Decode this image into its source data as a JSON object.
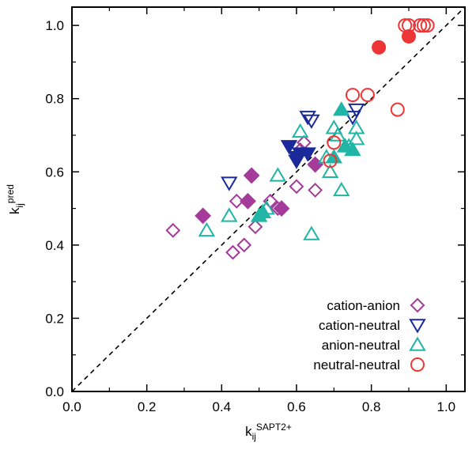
{
  "chart_data": {
    "type": "scatter",
    "xlabel": {
      "main": "k",
      "sub": "ij",
      "sup": "SAPT2+"
    },
    "ylabel": {
      "main": "k",
      "sub": "ij",
      "sup": "pred"
    },
    "xlim": [
      0,
      1.05
    ],
    "ylim": [
      0,
      1.05
    ],
    "xticks": [
      "0.0",
      "0.2",
      "0.4",
      "0.6",
      "0.8",
      "1.0"
    ],
    "yticks": [
      "0.0",
      "0.2",
      "0.4",
      "0.6",
      "0.8",
      "1.0"
    ],
    "grid": false,
    "legend_position": "bottom-right",
    "reference_line": {
      "style": "dashed",
      "from": [
        0,
        0
      ],
      "to": [
        1.05,
        1.05
      ],
      "color": "#000000"
    },
    "series": [
      {
        "name": "cation-anion",
        "color": "#a43a9a",
        "marker": "diamond",
        "points": [
          [
            0.27,
            0.44
          ],
          [
            0.43,
            0.38
          ],
          [
            0.46,
            0.4
          ],
          [
            0.44,
            0.52
          ],
          [
            0.49,
            0.45
          ],
          [
            0.53,
            0.52
          ],
          [
            0.55,
            0.5
          ],
          [
            0.6,
            0.56
          ],
          [
            0.65,
            0.55
          ],
          [
            0.61,
            0.66
          ],
          [
            0.62,
            0.68
          ]
        ]
      },
      {
        "name": "cation-anion (filled)",
        "color": "#a43a9a",
        "marker": "diamond-filled",
        "points": [
          [
            0.35,
            0.48
          ],
          [
            0.47,
            0.52
          ],
          [
            0.48,
            0.59
          ],
          [
            0.56,
            0.5
          ],
          [
            0.65,
            0.62
          ]
        ]
      },
      {
        "name": "cation-neutral",
        "color": "#1a2a9a",
        "marker": "triangle-down",
        "points": [
          [
            0.42,
            0.57
          ],
          [
            0.63,
            0.75
          ],
          [
            0.64,
            0.74
          ],
          [
            0.75,
            0.75
          ],
          [
            0.76,
            0.77
          ]
        ]
      },
      {
        "name": "cation-neutral (filled)",
        "color": "#1a2a9a",
        "marker": "triangle-down-filled",
        "points": [
          [
            0.58,
            0.67
          ],
          [
            0.6,
            0.64
          ],
          [
            0.61,
            0.65
          ],
          [
            0.63,
            0.65
          ],
          [
            0.6,
            0.63
          ]
        ]
      },
      {
        "name": "anion-neutral",
        "color": "#20b5a4",
        "marker": "triangle-up",
        "points": [
          [
            0.36,
            0.44
          ],
          [
            0.42,
            0.48
          ],
          [
            0.52,
            0.5
          ],
          [
            0.55,
            0.59
          ],
          [
            0.61,
            0.71
          ],
          [
            0.64,
            0.43
          ],
          [
            0.69,
            0.6
          ],
          [
            0.7,
            0.72
          ],
          [
            0.71,
            0.7
          ],
          [
            0.72,
            0.55
          ],
          [
            0.74,
            0.67
          ],
          [
            0.76,
            0.72
          ],
          [
            0.76,
            0.69
          ],
          [
            0.68,
            0.64
          ]
        ]
      },
      {
        "name": "anion-neutral (filled)",
        "color": "#20b5a4",
        "marker": "triangle-up-filled",
        "points": [
          [
            0.5,
            0.48
          ],
          [
            0.51,
            0.49
          ],
          [
            0.7,
            0.64
          ],
          [
            0.72,
            0.77
          ],
          [
            0.73,
            0.67
          ],
          [
            0.75,
            0.66
          ]
        ]
      },
      {
        "name": "neutral-neutral",
        "color": "#ee3535",
        "marker": "circle",
        "points": [
          [
            0.7,
            0.68
          ],
          [
            0.69,
            0.63
          ],
          [
            0.75,
            0.81
          ],
          [
            0.79,
            0.81
          ],
          [
            0.87,
            0.77
          ],
          [
            0.89,
            1.0
          ],
          [
            0.9,
            1.0
          ],
          [
            0.93,
            1.0
          ],
          [
            0.94,
            1.0
          ],
          [
            0.95,
            1.0
          ]
        ]
      },
      {
        "name": "neutral-neutral (filled)",
        "color": "#ee3535",
        "marker": "circle-filled",
        "points": [
          [
            0.82,
            0.94
          ],
          [
            0.9,
            0.97
          ]
        ]
      }
    ],
    "legend": [
      {
        "label": "cation-anion",
        "marker": "diamond",
        "color": "#a43a9a"
      },
      {
        "label": "cation-neutral",
        "marker": "triangle-down",
        "color": "#1a2a9a"
      },
      {
        "label": "anion-neutral",
        "marker": "triangle-up",
        "color": "#20b5a4"
      },
      {
        "label": "neutral-neutral",
        "marker": "circle",
        "color": "#ee3535"
      }
    ]
  }
}
